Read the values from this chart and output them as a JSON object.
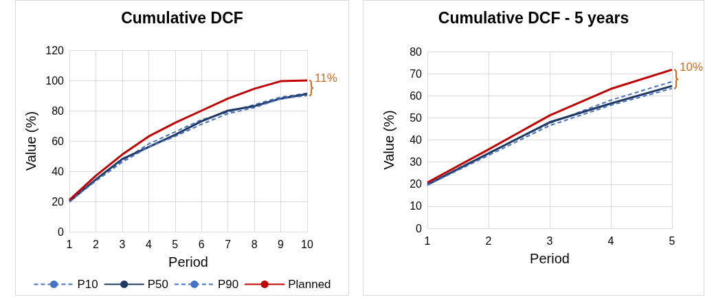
{
  "chart_data": [
    {
      "type": "line",
      "title": "Cumulative DCF",
      "xlabel": "Period",
      "ylabel": "Value (%)",
      "x": [
        1,
        2,
        3,
        4,
        5,
        6,
        7,
        8,
        9,
        10
      ],
      "xlim": [
        1,
        10
      ],
      "xticks": [
        1,
        2,
        3,
        4,
        5,
        6,
        7,
        8,
        9,
        10
      ],
      "ylim": [
        0,
        120
      ],
      "yticks": [
        0,
        20,
        40,
        60,
        80,
        100,
        120
      ],
      "grid": true,
      "legend": "bottom",
      "marker": "none",
      "series": [
        {
          "name": "P10",
          "color": "#4472c4",
          "line_style": "dashed",
          "values": [
            20,
            34,
            47,
            58,
            66,
            74,
            79,
            84,
            89,
            91.5
          ]
        },
        {
          "name": "P50",
          "color": "#203864",
          "line_style": "solid",
          "values": [
            20,
            34.5,
            48,
            56,
            64,
            73,
            80,
            83,
            88,
            91
          ]
        },
        {
          "name": "P90",
          "color": "#4472c4",
          "line_style": "dashed",
          "values": [
            20,
            33.5,
            46,
            56,
            63,
            71,
            78,
            82,
            88,
            90
          ]
        },
        {
          "name": "Planned",
          "color": "#c00000",
          "line_style": "solid",
          "values": [
            21,
            37,
            51,
            63,
            72,
            80,
            88,
            94.5,
            99.5,
            100
          ]
        }
      ],
      "annotations": [
        {
          "text": "11%",
          "x": 10,
          "y": 100
        }
      ]
    },
    {
      "type": "line",
      "title": "Cumulative DCF - 5 years",
      "xlabel": "Period",
      "ylabel": "Value (%)",
      "x": [
        1,
        2,
        3,
        4,
        5
      ],
      "xlim": [
        1,
        5
      ],
      "xticks": [
        1,
        2,
        3,
        4,
        5
      ],
      "ylim": [
        0,
        80
      ],
      "yticks": [
        0,
        10,
        20,
        30,
        40,
        50,
        60,
        70,
        80
      ],
      "grid": true,
      "legend": false,
      "marker": "none",
      "series": [
        {
          "color": "#4472c4",
          "line_style": "dashed",
          "values": [
            20,
            34,
            47.5,
            58,
            66.4
          ]
        },
        {
          "color": "#203864",
          "line_style": "solid",
          "values": [
            19.7,
            33.9,
            48,
            56.5,
            64.4
          ]
        },
        {
          "color": "#4472c4",
          "line_style": "dashed",
          "values": [
            19.5,
            33,
            46.5,
            55.7,
            63.3
          ]
        },
        {
          "color": "#c00000",
          "line_style": "solid",
          "values": [
            20.7,
            35.7,
            51.1,
            63.1,
            71.8
          ]
        }
      ],
      "annotations": [
        {
          "text": "10%",
          "x": 5,
          "y": 71.8
        }
      ]
    }
  ]
}
